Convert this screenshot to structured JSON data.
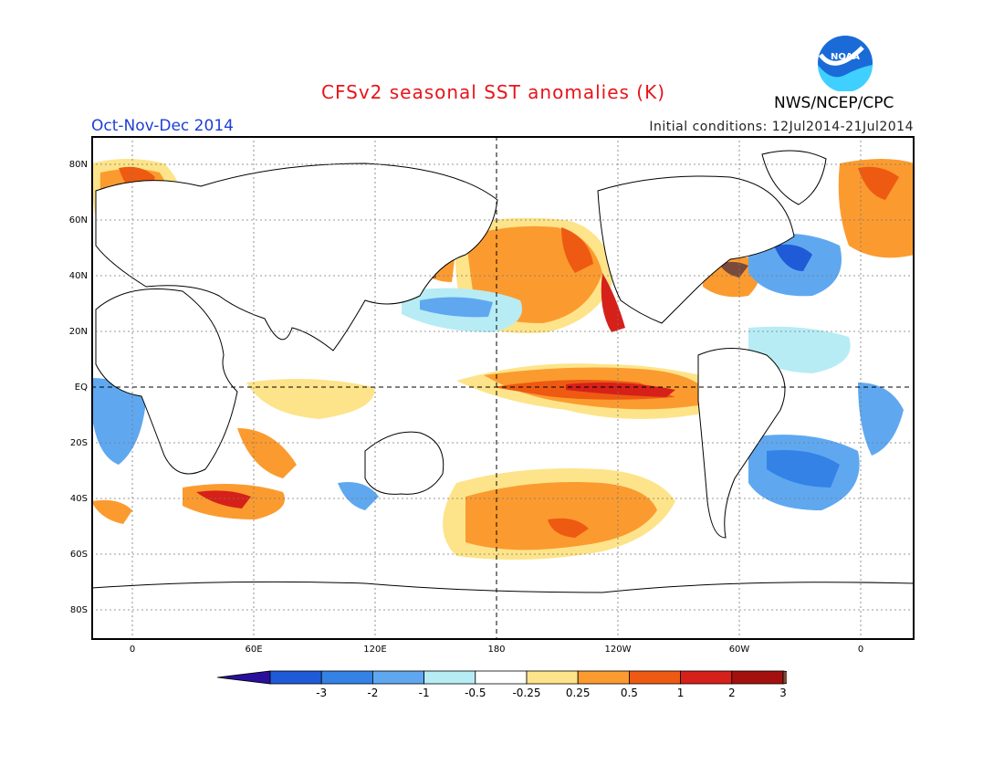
{
  "header": {
    "title": "CFSv2 seasonal SST anomalies (K)",
    "season": "Oct-Nov-Dec 2014",
    "initial_conditions": "Initial conditions: 12Jul2014-21Jul2014",
    "agency": "NWS/NCEP/CPC",
    "logo_text": "NOAA"
  },
  "map": {
    "latitude_labels": [
      "80N",
      "60N",
      "40N",
      "20N",
      "EQ",
      "20S",
      "40S",
      "60S",
      "80S"
    ],
    "longitude_labels": [
      "0",
      "60E",
      "120E",
      "180",
      "120W",
      "60W",
      "0"
    ],
    "reference_lines": [
      "equator",
      "180 meridian"
    ]
  },
  "colorbar": {
    "labels": [
      "-3",
      "-2",
      "-1",
      "-0.5",
      "-0.25",
      "0.25",
      "0.5",
      "1",
      "2",
      "3"
    ],
    "colors": [
      "#2a0f9c",
      "#1f5bd6",
      "#3482e6",
      "#5fa8f0",
      "#b7ecf5",
      "#ffffff",
      "#fde48a",
      "#fb9b2f",
      "#ee5a11",
      "#d6201a",
      "#a3100e",
      "#7a4a3c"
    ]
  }
}
